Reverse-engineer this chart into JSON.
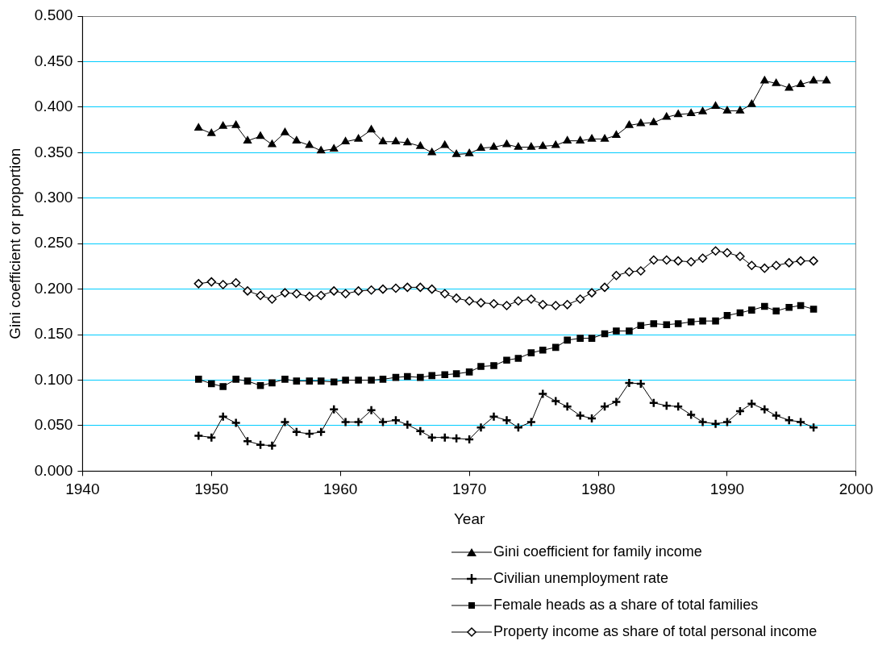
{
  "chart_data": {
    "type": "line",
    "xlabel": "Year",
    "ylabel": "Gini coefficient or proportion",
    "xlim": [
      1940,
      2000
    ],
    "xticks": [
      1940,
      1950,
      1960,
      1970,
      1980,
      1990,
      2000
    ],
    "ylim": [
      0,
      0.5
    ],
    "yticks": [
      {
        "value": 0,
        "label": "0.000"
      },
      {
        "value": 0.05,
        "label": "0.050"
      },
      {
        "value": 0.1,
        "label": "0.100"
      },
      {
        "value": 0.15,
        "label": "0.150"
      },
      {
        "value": 0.2,
        "label": "0.200"
      },
      {
        "value": 0.25,
        "label": "0.250"
      },
      {
        "value": 0.3,
        "label": "0.300"
      },
      {
        "value": 0.35,
        "label": "0.350"
      },
      {
        "value": 0.4,
        "label": "0.400"
      },
      {
        "value": 0.45,
        "label": "0.450"
      },
      {
        "value": 0.5,
        "label": "0.500"
      }
    ],
    "grid": "y",
    "legend": "bottom",
    "line_style": "solid",
    "series": [
      {
        "name": "Gini coefficient for family income",
        "color": "#000000",
        "marker": "triangle",
        "x": [
          1949.0,
          1950.0,
          1950.9,
          1951.9,
          1952.8,
          1953.8,
          1954.7,
          1955.7,
          1956.6,
          1957.6,
          1958.5,
          1959.5,
          1960.4,
          1961.4,
          1962.4,
          1963.3,
          1964.3,
          1965.2,
          1966.2,
          1967.1,
          1968.1,
          1969.0,
          1970.0,
          1970.9,
          1971.9,
          1972.9,
          1973.8,
          1974.8,
          1975.7,
          1976.7,
          1977.6,
          1978.6,
          1979.5,
          1980.5,
          1981.4,
          1982.4,
          1983.3,
          1984.3,
          1985.3,
          1986.2,
          1987.2,
          1988.1,
          1989.1,
          1990.0,
          1991.0,
          1991.9,
          1992.9,
          1993.8,
          1994.8,
          1995.7,
          1996.7,
          1997.7
        ],
        "values": [
          0.377,
          0.371,
          0.379,
          0.38,
          0.363,
          0.368,
          0.359,
          0.372,
          0.363,
          0.358,
          0.352,
          0.354,
          0.362,
          0.365,
          0.375,
          0.362,
          0.362,
          0.361,
          0.357,
          0.35,
          0.358,
          0.348,
          0.349,
          0.355,
          0.356,
          0.359,
          0.356,
          0.356,
          0.357,
          0.358,
          0.363,
          0.363,
          0.365,
          0.365,
          0.369,
          0.38,
          0.382,
          0.383,
          0.389,
          0.392,
          0.393,
          0.395,
          0.401,
          0.396,
          0.396,
          0.403,
          0.429,
          0.426,
          0.421,
          0.425,
          0.429,
          0.429
        ]
      },
      {
        "name": "Civilian unemployment rate",
        "color": "#000000",
        "marker": "cross",
        "x": [
          1949.0,
          1950.0,
          1950.9,
          1951.9,
          1952.8,
          1953.8,
          1954.7,
          1955.7,
          1956.6,
          1957.6,
          1958.5,
          1959.5,
          1960.4,
          1961.4,
          1962.4,
          1963.3,
          1964.3,
          1965.2,
          1966.2,
          1967.1,
          1968.1,
          1969.0,
          1970.0,
          1970.9,
          1971.9,
          1972.9,
          1973.8,
          1974.8,
          1975.7,
          1976.7,
          1977.6,
          1978.6,
          1979.5,
          1980.5,
          1981.4,
          1982.4,
          1983.3,
          1984.3,
          1985.3,
          1986.2,
          1987.2,
          1988.1,
          1989.1,
          1990.0,
          1991.0,
          1991.9,
          1992.9,
          1993.8,
          1994.8,
          1995.7,
          1996.7
        ],
        "values": [
          0.039,
          0.037,
          0.06,
          0.053,
          0.033,
          0.029,
          0.028,
          0.054,
          0.043,
          0.041,
          0.043,
          0.068,
          0.054,
          0.054,
          0.067,
          0.054,
          0.056,
          0.051,
          0.044,
          0.037,
          0.037,
          0.036,
          0.035,
          0.048,
          0.06,
          0.056,
          0.048,
          0.054,
          0.085,
          0.077,
          0.071,
          0.061,
          0.058,
          0.071,
          0.076,
          0.097,
          0.096,
          0.075,
          0.072,
          0.071,
          0.062,
          0.054,
          0.052,
          0.054,
          0.066,
          0.074,
          0.068,
          0.061,
          0.056,
          0.054,
          0.048
        ]
      },
      {
        "name": "Female heads as a share of total families",
        "color": "#000000",
        "marker": "square",
        "x": [
          1949.0,
          1950.0,
          1950.9,
          1951.9,
          1952.8,
          1953.8,
          1954.7,
          1955.7,
          1956.6,
          1957.6,
          1958.5,
          1959.5,
          1960.4,
          1961.4,
          1962.4,
          1963.3,
          1964.3,
          1965.2,
          1966.2,
          1967.1,
          1968.1,
          1969.0,
          1970.0,
          1970.9,
          1971.9,
          1972.9,
          1973.8,
          1974.8,
          1975.7,
          1976.7,
          1977.6,
          1978.6,
          1979.5,
          1980.5,
          1981.4,
          1982.4,
          1983.3,
          1984.3,
          1985.3,
          1986.2,
          1987.2,
          1988.1,
          1989.1,
          1990.0,
          1991.0,
          1991.9,
          1992.9,
          1993.8,
          1994.8,
          1995.7,
          1996.7
        ],
        "values": [
          0.101,
          0.096,
          0.093,
          0.101,
          0.099,
          0.094,
          0.097,
          0.101,
          0.099,
          0.099,
          0.099,
          0.098,
          0.1,
          0.1,
          0.1,
          0.101,
          0.103,
          0.104,
          0.103,
          0.105,
          0.106,
          0.107,
          0.109,
          0.115,
          0.116,
          0.122,
          0.124,
          0.13,
          0.133,
          0.136,
          0.144,
          0.146,
          0.146,
          0.151,
          0.154,
          0.154,
          0.16,
          0.162,
          0.161,
          0.162,
          0.164,
          0.165,
          0.165,
          0.171,
          0.174,
          0.177,
          0.181,
          0.176,
          0.18,
          0.182,
          0.178
        ]
      },
      {
        "name": "Property income as share of total personal income",
        "color": "#000000",
        "marker": "diamond",
        "x": [
          1949.0,
          1950.0,
          1950.9,
          1951.9,
          1952.8,
          1953.8,
          1954.7,
          1955.7,
          1956.6,
          1957.6,
          1958.5,
          1959.5,
          1960.4,
          1961.4,
          1962.4,
          1963.3,
          1964.3,
          1965.2,
          1966.2,
          1967.1,
          1968.1,
          1969.0,
          1970.0,
          1970.9,
          1971.9,
          1972.9,
          1973.8,
          1974.8,
          1975.7,
          1976.7,
          1977.6,
          1978.6,
          1979.5,
          1980.5,
          1981.4,
          1982.4,
          1983.3,
          1984.3,
          1985.3,
          1986.2,
          1987.2,
          1988.1,
          1989.1,
          1990.0,
          1991.0,
          1991.9,
          1992.9,
          1993.8,
          1994.8,
          1995.7,
          1996.7
        ],
        "values": [
          0.206,
          0.208,
          0.205,
          0.207,
          0.198,
          0.193,
          0.189,
          0.196,
          0.195,
          0.192,
          0.193,
          0.198,
          0.195,
          0.198,
          0.199,
          0.2,
          0.201,
          0.202,
          0.202,
          0.2,
          0.195,
          0.19,
          0.187,
          0.185,
          0.184,
          0.182,
          0.187,
          0.189,
          0.183,
          0.182,
          0.183,
          0.189,
          0.196,
          0.202,
          0.215,
          0.219,
          0.22,
          0.232,
          0.232,
          0.231,
          0.23,
          0.234,
          0.242,
          0.24,
          0.236,
          0.226,
          0.223,
          0.226,
          0.229,
          0.231,
          0.231
        ]
      }
    ]
  }
}
